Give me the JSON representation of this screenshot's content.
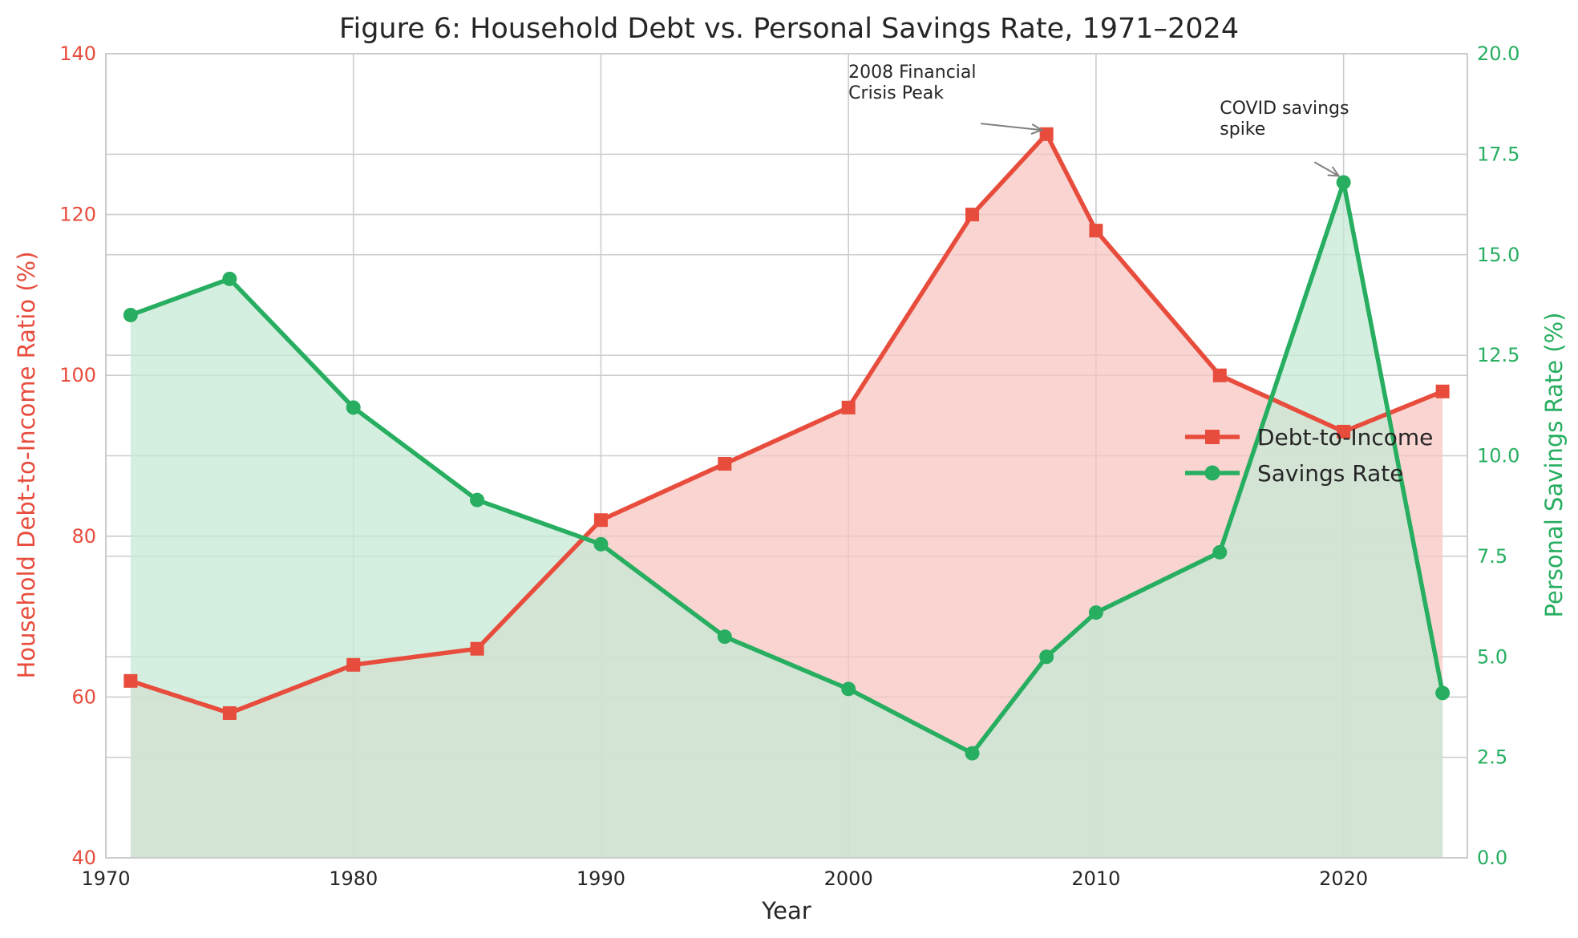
{
  "chart_data": {
    "type": "line",
    "title": "Figure 6: Household Debt vs. Personal Savings Rate, 1971–2024",
    "xlabel": "Year",
    "ylabel_left": "Household Debt-to-Income Ratio (%)",
    "ylabel_right": "Personal Savings Rate (%)",
    "xlim": [
      1970,
      2025
    ],
    "ylim_left": [
      40,
      140
    ],
    "ylim_right": [
      0,
      20
    ],
    "x_ticks": [
      "1970",
      "1980",
      "1990",
      "2000",
      "2010",
      "2020"
    ],
    "y_ticks_left": [
      "40",
      "60",
      "80",
      "100",
      "120",
      "140"
    ],
    "y_ticks_right": [
      "0.0",
      "2.5",
      "5.0",
      "7.5",
      "10.0",
      "12.5",
      "15.0",
      "17.5",
      "20.0"
    ],
    "grid": true,
    "legend_position": "center-right",
    "x": [
      1971,
      1975,
      1980,
      1985,
      1990,
      1995,
      2000,
      2005,
      2008,
      2010,
      2015,
      2020,
      2024
    ],
    "series": [
      {
        "name": "Debt-to-Income",
        "axis": "left",
        "color": "#e74c3c",
        "fill_color": "#f7c6c2",
        "marker": "square",
        "values": [
          62,
          58,
          64,
          66,
          82,
          89,
          96,
          120,
          130,
          118,
          100,
          93,
          98
        ]
      },
      {
        "name": "Savings Rate",
        "axis": "right",
        "color": "#27ae60",
        "fill_color": "#c5ead5",
        "marker": "circle",
        "values": [
          13.5,
          14.4,
          11.2,
          8.9,
          7.8,
          5.5,
          4.2,
          2.6,
          5.0,
          6.1,
          7.6,
          16.8,
          4.1
        ]
      }
    ],
    "annotations": [
      {
        "lines": [
          "2008 Financial",
          "Crisis Peak"
        ],
        "x": 2008,
        "y": 130,
        "axis": "left",
        "text_x": 2000,
        "text_y": 137
      },
      {
        "lines": [
          "COVID savings",
          "spike"
        ],
        "x": 2020,
        "y": 16.8,
        "axis": "right",
        "text_x": 2015,
        "text_y": 18.5
      }
    ]
  }
}
